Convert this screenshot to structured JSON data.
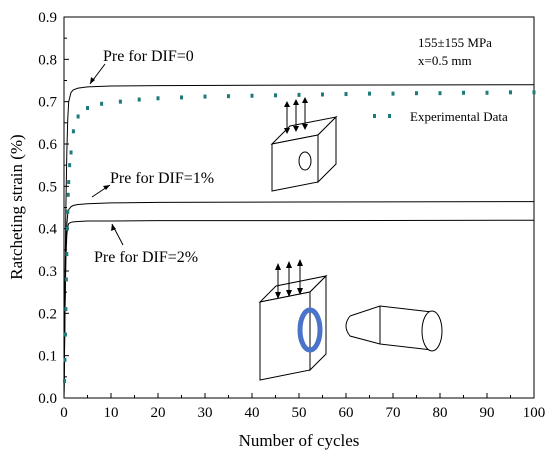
{
  "chart_data": {
    "type": "line",
    "title": "",
    "xlabel": "Number of cycles",
    "ylabel": "Ratcheting strain (%)",
    "xlim": [
      0,
      100
    ],
    "ylim": [
      0,
      0.9
    ],
    "xticks": [
      "0",
      "10",
      "20",
      "30",
      "40",
      "50",
      "60",
      "70",
      "80",
      "90",
      "100"
    ],
    "yticks": [
      "0.0",
      "0.1",
      "0.2",
      "0.3",
      "0.4",
      "0.5",
      "0.6",
      "0.7",
      "0.8",
      "0.9"
    ],
    "grid": false,
    "legend_placement": "right",
    "series": [
      {
        "name": "Pre for DIF=0",
        "style": "solid",
        "color": "#000000",
        "x": [
          0,
          0.2,
          0.4,
          0.6,
          0.8,
          1,
          1.5,
          2,
          3,
          5,
          10,
          20,
          50,
          100
        ],
        "y": [
          0,
          0.25,
          0.45,
          0.58,
          0.66,
          0.7,
          0.722,
          0.728,
          0.732,
          0.735,
          0.737,
          0.738,
          0.739,
          0.74
        ]
      },
      {
        "name": "Pre for DIF=1%",
        "style": "solid",
        "color": "#000000",
        "x": [
          0,
          0.2,
          0.4,
          0.6,
          0.8,
          1,
          1.5,
          2,
          3,
          5,
          10,
          20,
          50,
          100
        ],
        "y": [
          0,
          0.2,
          0.35,
          0.41,
          0.435,
          0.445,
          0.452,
          0.455,
          0.457,
          0.459,
          0.461,
          0.462,
          0.463,
          0.464
        ]
      },
      {
        "name": "Pre for DIF=2%",
        "style": "solid",
        "color": "#000000",
        "x": [
          0,
          0.2,
          0.4,
          0.6,
          0.8,
          1,
          1.5,
          2,
          3,
          5,
          10,
          20,
          50,
          100
        ],
        "y": [
          0,
          0.2,
          0.33,
          0.385,
          0.405,
          0.412,
          0.415,
          0.416,
          0.417,
          0.418,
          0.418,
          0.419,
          0.419,
          0.42
        ]
      },
      {
        "name": "Experimental Data",
        "style": "markers",
        "color": "#1f7a7a",
        "x": [
          0.1,
          0.2,
          0.3,
          0.4,
          0.5,
          0.6,
          0.7,
          0.8,
          0.9,
          1.0,
          1.2,
          1.5,
          2,
          3,
          5,
          8,
          12,
          16,
          20,
          25,
          30,
          35,
          40,
          45,
          50,
          55,
          60,
          65,
          70,
          75,
          80,
          85,
          90,
          95,
          100
        ],
        "y": [
          0.04,
          0.09,
          0.15,
          0.21,
          0.28,
          0.34,
          0.4,
          0.44,
          0.48,
          0.51,
          0.55,
          0.58,
          0.63,
          0.665,
          0.685,
          0.695,
          0.7,
          0.705,
          0.708,
          0.71,
          0.712,
          0.713,
          0.714,
          0.715,
          0.716,
          0.717,
          0.718,
          0.719,
          0.719,
          0.72,
          0.72,
          0.721,
          0.721,
          0.722,
          0.722
        ]
      }
    ],
    "annotations": {
      "load": "155±155 MPa",
      "depth": "x=0.5 mm",
      "dif0": "Pre for DIF=0",
      "dif1": "Pre for DIF=1%",
      "dif2": "Pre for DIF=2%",
      "legend": "Experimental Data"
    },
    "colors": {
      "experimental": "#1f7a7a",
      "hole_ring": "#4a74c9"
    }
  }
}
